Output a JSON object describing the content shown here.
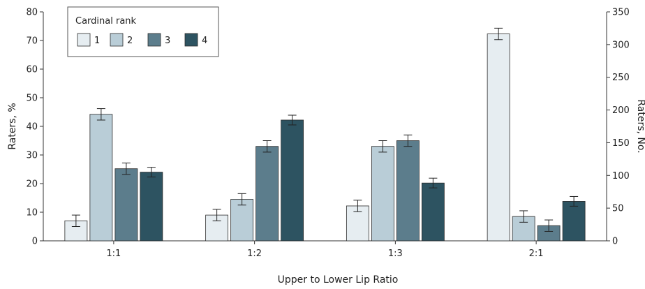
{
  "chart_data": {
    "type": "bar",
    "xlabel": "Upper to Lower Lip Ratio",
    "ylabel": "Raters, %",
    "y2label": "Raters, No.",
    "ylim": [
      0,
      80
    ],
    "y2lim": [
      0,
      350
    ],
    "yticks": [
      "0",
      "10",
      "20",
      "30",
      "40",
      "50",
      "60",
      "70",
      "80"
    ],
    "y2ticks": [
      "0",
      "50",
      "100",
      "150",
      "200",
      "250",
      "300",
      "350"
    ],
    "categories": [
      "1:1",
      "1:2",
      "1:3",
      "2:1"
    ],
    "legend": {
      "title": "Cardinal rank",
      "placement": "top-left"
    },
    "series": [
      {
        "name": "1",
        "color": "#e6edf1",
        "values": [
          7,
          9,
          12.2,
          72.3
        ],
        "err": [
          2,
          2,
          2,
          2
        ]
      },
      {
        "name": "2",
        "color": "#b9cdd7",
        "values": [
          44.2,
          14.5,
          33,
          8.5
        ],
        "err": [
          2,
          2,
          2,
          2
        ]
      },
      {
        "name": "3",
        "color": "#5c7d8c",
        "values": [
          25.2,
          33,
          35,
          5.3
        ],
        "err": [
          2,
          2,
          2,
          2
        ]
      },
      {
        "name": "4",
        "color": "#2d5361",
        "values": [
          24,
          42.2,
          20.2,
          13.8
        ],
        "err": [
          1.7,
          1.7,
          1.7,
          1.7
        ]
      }
    ]
  }
}
